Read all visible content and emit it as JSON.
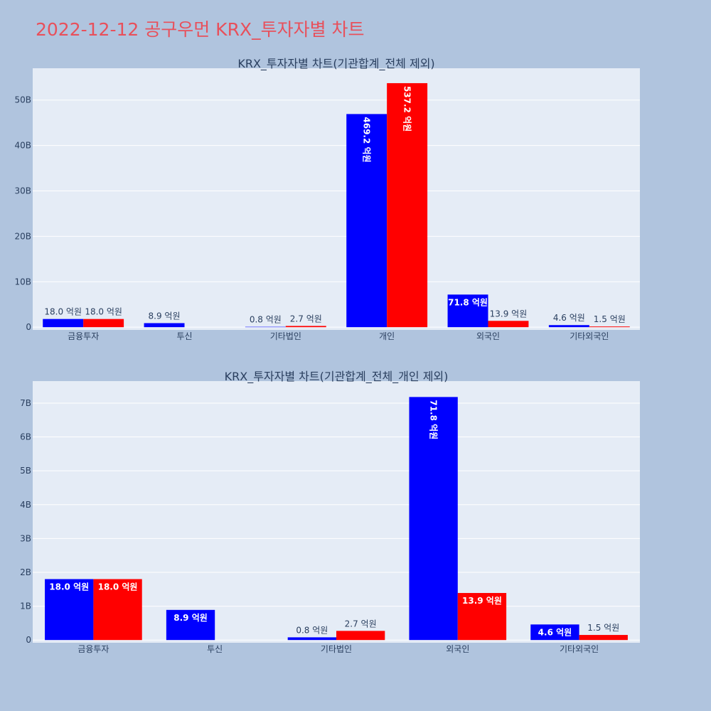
{
  "page_title": "2022-12-12 공구우먼 KRX_투자자별 차트",
  "colors": {
    "series_buy": "#0000ff",
    "series_sell": "#ff0000",
    "plot_bg": "#e5ecf6",
    "page_bg": "#b0c4de",
    "title": "#e8505b"
  },
  "chart_data": [
    {
      "type": "bar",
      "title": "KRX_투자자별 차트(기관합계_전체 제외)",
      "categories": [
        "금융투자",
        "투신",
        "기타법인",
        "개인",
        "외국인",
        "기타외국인"
      ],
      "series": [
        {
          "values": [
            1800000000,
            890000000,
            80000000,
            46920000000,
            7180000000,
            460000000
          ],
          "labels": [
            "18.0 억원",
            "8.9 억원",
            "0.8 억원",
            "469.2 억원",
            "71.8 억원",
            "4.6 억원"
          ]
        },
        {
          "values": [
            1800000000,
            0,
            270000000,
            53720000000,
            1390000000,
            150000000
          ],
          "labels": [
            "18.0 억원",
            "",
            "2.7 억원",
            "537.2 억원",
            "13.9 억원",
            "1.5 억원"
          ]
        }
      ],
      "yticks": [
        {
          "value": 0,
          "label": "0"
        },
        {
          "value": 10000000000,
          "label": "10B"
        },
        {
          "value": 20000000000,
          "label": "20B"
        },
        {
          "value": 30000000000,
          "label": "30B"
        },
        {
          "value": 40000000000,
          "label": "40B"
        },
        {
          "value": 50000000000,
          "label": "50B"
        }
      ],
      "ylim": [
        -600000000,
        57000000000
      ],
      "grid": true
    },
    {
      "type": "bar",
      "title": "KRX_투자자별 차트(기관합계_전체_개인 제외)",
      "categories": [
        "금융투자",
        "투신",
        "기타법인",
        "외국인",
        "기타외국인"
      ],
      "series": [
        {
          "values": [
            1800000000,
            890000000,
            80000000,
            7180000000,
            460000000
          ],
          "labels": [
            "18.0 억원",
            "8.9 억원",
            "0.8 억원",
            "71.8 억원",
            "4.6 억원"
          ]
        },
        {
          "values": [
            1800000000,
            0,
            270000000,
            1390000000,
            150000000
          ],
          "labels": [
            "18.0 억원",
            "",
            "2.7 억원",
            "13.9 억원",
            "1.5 억원"
          ]
        }
      ],
      "yticks": [
        {
          "value": 0,
          "label": "0"
        },
        {
          "value": 1000000000,
          "label": "1B"
        },
        {
          "value": 2000000000,
          "label": "2B"
        },
        {
          "value": 3000000000,
          "label": "3B"
        },
        {
          "value": 4000000000,
          "label": "4B"
        },
        {
          "value": 5000000000,
          "label": "5B"
        },
        {
          "value": 6000000000,
          "label": "6B"
        },
        {
          "value": 7000000000,
          "label": "7B"
        }
      ],
      "ylim": [
        -80000000,
        7650000000
      ],
      "grid": true
    }
  ]
}
